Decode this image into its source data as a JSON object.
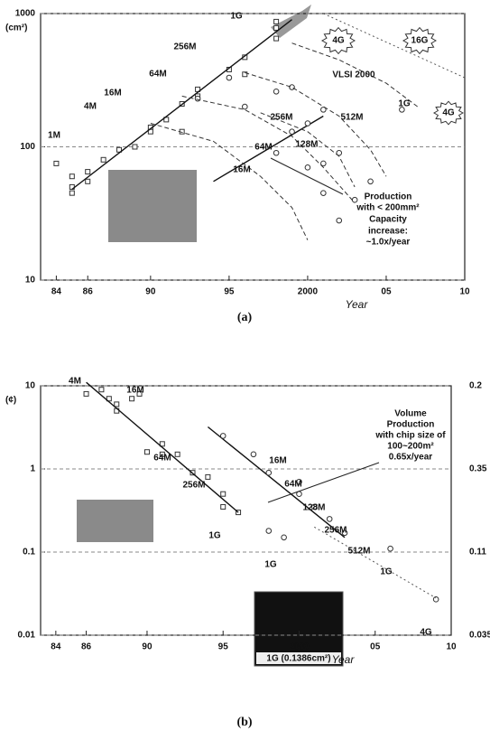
{
  "chart_data": [
    {
      "type": "scatter",
      "log_y": true,
      "grid": true,
      "ylabel": "(cm²)",
      "xlabel": "Year",
      "caption": "(a)",
      "xlim": [
        1983,
        2010
      ],
      "ylim": [
        10,
        1000
      ],
      "xticks": [
        {
          "value": 1984,
          "label": "84"
        },
        {
          "value": 1986,
          "label": "86"
        },
        {
          "value": 1990,
          "label": "90"
        },
        {
          "value": 1995,
          "label": "95"
        },
        2000,
        {
          "value": 2005,
          "label": "05"
        },
        {
          "value": 2010,
          "label": "10"
        }
      ],
      "yticks": [
        10,
        100,
        1000
      ],
      "series": [
        {
          "marker": "square",
          "line": null,
          "color": "#333",
          "x": [
            1984,
            1985,
            1985,
            1985,
            1986,
            1986,
            1987,
            1988,
            1989,
            1990,
            1990,
            1991,
            1992,
            1992,
            1993,
            1993,
            1995,
            1996,
            1996,
            1998,
            1998,
            1998
          ],
          "values": [
            75,
            60,
            50,
            45,
            65,
            55,
            80,
            95,
            100,
            140,
            130,
            160,
            210,
            130,
            270,
            240,
            380,
            470,
            350,
            650,
            780,
            870
          ]
        },
        {
          "marker": null,
          "line": "solid",
          "color": "#111",
          "x": [
            1985,
            1999
          ],
          "values": [
            48,
            900
          ]
        },
        {
          "marker": null,
          "line": "solid",
          "color": "#111",
          "x": [
            1994,
            2001
          ],
          "values": [
            55,
            170
          ]
        },
        {
          "marker": "circle",
          "line": null,
          "color": "#333",
          "x": [
            1993,
            1996,
            1999,
            2001,
            2003,
            1995,
            1998,
            2000,
            2002,
            2004,
            1998,
            2000,
            2001,
            2002,
            2001,
            1999,
            2006
          ],
          "values": [
            230,
            200,
            130,
            75,
            40,
            330,
            260,
            150,
            90,
            55,
            90,
            70,
            45,
            28,
            190,
            280,
            190
          ]
        },
        {
          "marker": null,
          "line": "dashed",
          "color": "#333",
          "x": [
            1990,
            1994,
            1997,
            1999,
            2000,
            null,
            1992,
            1996,
            1999,
            2001,
            2003,
            null,
            1997,
            2000,
            2002,
            2003,
            null,
            1996,
            1999,
            2002,
            2004,
            2005,
            null,
            1999,
            2002,
            2005,
            2007
          ],
          "values": [
            150,
            110,
            60,
            35,
            20,
            null,
            240,
            190,
            120,
            70,
            38,
            null,
            180,
            130,
            85,
            50,
            null,
            360,
            280,
            170,
            95,
            60,
            null,
            600,
            450,
            300,
            200
          ]
        },
        {
          "marker": null,
          "line": "dotted",
          "color": "#555",
          "x": [
            2001,
            2010
          ],
          "values": [
            1000,
            330
          ]
        }
      ],
      "annotations": [
        "1G",
        "256M",
        "64M",
        "16M",
        "4M",
        "1M",
        "4G",
        "16G",
        "4G",
        "VLSI 2000",
        "1G",
        "512M",
        "256M",
        "128M",
        "64M",
        "16M",
        "Production",
        "with < 200mm²",
        "Capacity",
        "increase:",
        "~1.0x/year"
      ]
    },
    {
      "type": "scatter",
      "log_y": true,
      "grid": true,
      "ylabel": "(¢)",
      "xlabel": "Year",
      "caption": "(b)",
      "xlim": [
        1983,
        2010
      ],
      "ylim": [
        0.01,
        10
      ],
      "xticks": [
        {
          "value": 1984,
          "label": "84"
        },
        {
          "value": 1986,
          "label": "86"
        },
        {
          "value": 1990,
          "label": "90"
        },
        {
          "value": 1995,
          "label": "95"
        },
        2000,
        {
          "value": 2005,
          "label": "05"
        },
        {
          "value": 2010,
          "label": "10"
        }
      ],
      "yticks": [
        0.01,
        0.1,
        1,
        10
      ],
      "right_labels": [
        "0.2",
        "0.35",
        "0.11",
        "0.035"
      ],
      "series": [
        {
          "marker": "square",
          "line": null,
          "color": "#333",
          "x": [
            1986,
            1987,
            1987.5,
            1988,
            1988,
            1989,
            1989.5,
            1990,
            1991,
            1991,
            1992,
            1993,
            1994,
            1995,
            1995,
            1996
          ],
          "values": [
            8,
            9,
            7,
            6,
            5,
            7,
            8,
            1.6,
            2,
            1.5,
            1.5,
            0.9,
            0.8,
            0.5,
            0.35,
            0.3
          ]
        },
        {
          "marker": null,
          "line": "solid",
          "color": "#111",
          "x": [
            1986,
            1996
          ],
          "values": [
            11,
            0.3
          ]
        },
        {
          "marker": null,
          "line": "solid",
          "color": "#111",
          "x": [
            1994,
            2003
          ],
          "values": [
            3.2,
            0.15
          ]
        },
        {
          "marker": "circle",
          "line": null,
          "color": "#333",
          "x": [
            1995,
            1997,
            1998,
            2000,
            2000,
            2001,
            2002,
            2003,
            1998,
            1999,
            2006,
            2009
          ],
          "values": [
            2.5,
            1.5,
            0.9,
            0.7,
            0.5,
            0.35,
            0.25,
            0.17,
            0.18,
            0.15,
            0.11,
            0.027
          ]
        },
        {
          "marker": null,
          "line": "dotted",
          "color": "#555",
          "x": [
            2001,
            2009
          ],
          "values": [
            0.2,
            0.028
          ]
        }
      ],
      "annotations": [
        "4M",
        "16M",
        "64M",
        "256M",
        "1G",
        "16M",
        "64M",
        "128M",
        "256M",
        "512M",
        "1G",
        "1G",
        "4G",
        "Volume",
        "Production",
        "with chip size of",
        "100~200m²",
        "0.65x/year",
        "1G (0.1386cm²)"
      ]
    }
  ]
}
